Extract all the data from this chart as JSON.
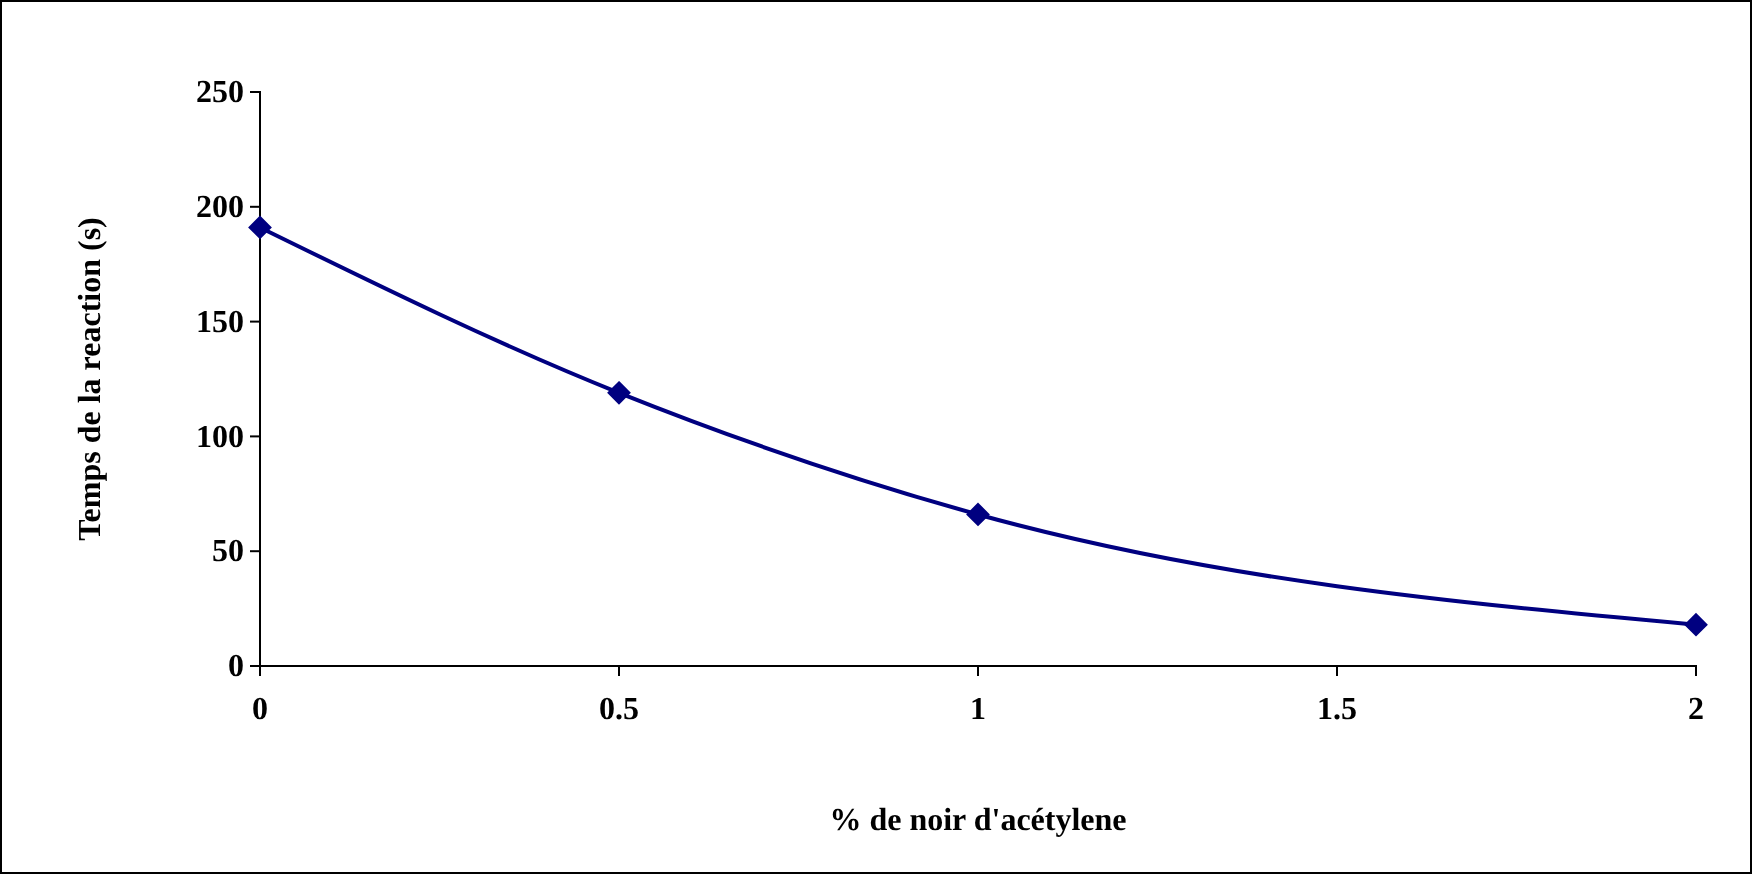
{
  "chart_data": {
    "type": "line",
    "xlabel": "% de noir d'acétylene",
    "ylabel": "Temps de la reaction (s)",
    "x": [
      0,
      0.5,
      1,
      2
    ],
    "series": [
      {
        "color": "#000080",
        "values": [
          191,
          119,
          66,
          18
        ]
      }
    ],
    "xlim": [
      0,
      2
    ],
    "xticks": [
      0,
      0.5,
      1,
      1.5,
      2
    ],
    "ylim": [
      0,
      250
    ],
    "yticks": [
      0,
      50,
      100,
      150,
      200,
      250
    ],
    "grid": false,
    "marker": "diamond",
    "line_style": "solid"
  }
}
